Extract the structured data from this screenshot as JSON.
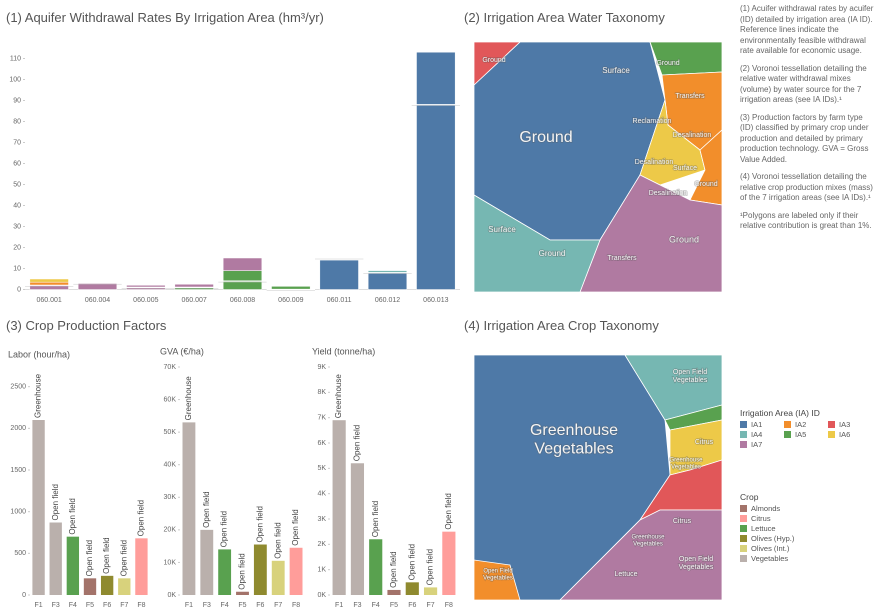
{
  "chart_data": [
    {
      "type": "stacked_bar",
      "title": "(1) Aquifer Withdrawal Rates By Irrigation Area (hm³/yr)",
      "categories": [
        "060.001",
        "060.004",
        "060.005",
        "060.007",
        "060.008",
        "060.009",
        "060.011",
        "060.012",
        "060.013"
      ],
      "series": [
        {
          "name": "IA1",
          "color": "#4e79a7",
          "values": [
            null,
            null,
            null,
            null,
            null,
            null,
            14,
            8,
            113
          ]
        },
        {
          "name": "IA4",
          "color": "#76b7b2",
          "values": [
            null,
            null,
            null,
            null,
            null,
            null,
            null,
            1,
            null
          ]
        },
        {
          "name": "IA5",
          "color": "#59a14f",
          "values": [
            null,
            null,
            null,
            1,
            9,
            1.5,
            null,
            null,
            null
          ]
        },
        {
          "name": "IA7",
          "color": "#b07aa1",
          "values": [
            2,
            3,
            2,
            1.5,
            6,
            null,
            null,
            null,
            null
          ]
        },
        {
          "name": "IA2",
          "color": "#f28e2b",
          "values": [
            1.5,
            null,
            null,
            null,
            null,
            null,
            null,
            null,
            null
          ]
        },
        {
          "name": "IA6",
          "color": "#edc948",
          "values": [
            1.5,
            null,
            null,
            null,
            null,
            null,
            null,
            null,
            null
          ]
        }
      ],
      "reference": [
        2,
        3,
        1,
        1,
        4,
        0,
        15,
        8,
        88
      ],
      "ylim": [
        -5,
        115
      ],
      "yticks": [
        0,
        10,
        20,
        30,
        40,
        50,
        60,
        70,
        80,
        90,
        100,
        110
      ],
      "grid": false
    },
    {
      "type": "bar",
      "title": "Labor (hour/ha)",
      "categories": [
        "F1",
        "F3",
        "F4",
        "F5",
        "F6",
        "F7",
        "F8"
      ],
      "values": [
        2100,
        870,
        700,
        200,
        230,
        200,
        680
      ],
      "bar_labels": [
        "Greenhouse",
        "Open field",
        "Open field",
        "Open field",
        "Open field",
        "Open field",
        "Open field"
      ],
      "colors": [
        "#bab0ac",
        "#bab0ac",
        "#59a14f",
        "#a3736a",
        "#8f8a2f",
        "#d8d27c",
        "#ff9d9a"
      ],
      "ylim": [
        0,
        2700
      ],
      "yticks": [
        0,
        500,
        1000,
        1500,
        2000,
        2500
      ],
      "grid": false
    },
    {
      "type": "bar",
      "title": "GVA (€/ha)",
      "categories": [
        "F1",
        "F3",
        "F4",
        "F5",
        "F6",
        "F7",
        "F8"
      ],
      "values": [
        53000,
        20000,
        14000,
        1000,
        15500,
        10500,
        14500
      ],
      "bar_labels": [
        "Greenhouse",
        "Open field",
        "Open field",
        "Open field",
        "Open field",
        "Open field",
        "Open field"
      ],
      "colors": [
        "#bab0ac",
        "#bab0ac",
        "#59a14f",
        "#a3736a",
        "#8f8a2f",
        "#d8d27c",
        "#ff9d9a"
      ],
      "ylim": [
        0,
        70000
      ],
      "yticks": [
        {
          "value": 0,
          "label": "0K"
        },
        {
          "value": 10000,
          "label": "10K"
        },
        {
          "value": 20000,
          "label": "20K"
        },
        {
          "value": 30000,
          "label": "30K"
        },
        {
          "value": 40000,
          "label": "40K"
        },
        {
          "value": 50000,
          "label": "50K"
        },
        {
          "value": 60000,
          "label": "60K"
        },
        {
          "value": 70000,
          "label": "70K"
        }
      ],
      "grid": false
    },
    {
      "type": "bar",
      "title": "Yield (tonne/ha)",
      "categories": [
        "F1",
        "F3",
        "F4",
        "F5",
        "F6",
        "F7",
        "F8"
      ],
      "values": [
        6900,
        5200,
        2200,
        200,
        500,
        300,
        2500
      ],
      "bar_labels": [
        "Greenhouse",
        "Open field",
        "Open field",
        "Open field",
        "Open field",
        "Open field",
        "Open field"
      ],
      "colors": [
        "#bab0ac",
        "#bab0ac",
        "#59a14f",
        "#a3736a",
        "#8f8a2f",
        "#d8d27c",
        "#ff9d9a"
      ],
      "ylim": [
        0,
        9000
      ],
      "yticks": [
        {
          "value": 0,
          "label": "0K"
        },
        {
          "value": 1000,
          "label": "1K"
        },
        {
          "value": 2000,
          "label": "2K"
        },
        {
          "value": 3000,
          "label": "3K"
        },
        {
          "value": 4000,
          "label": "4K"
        },
        {
          "value": 5000,
          "label": "5K"
        },
        {
          "value": 6000,
          "label": "6K"
        },
        {
          "value": 7000,
          "label": "7K"
        },
        {
          "value": 8000,
          "label": "8K"
        },
        {
          "value": 9000,
          "label": "9K"
        }
      ],
      "grid": false
    }
  ],
  "section3_title": "(3) Crop Production Factors",
  "taxonomy_water": {
    "title": "(2) Irrigation Area Water Taxonomy",
    "labels": [
      "Ground",
      "Ground",
      "Surface",
      "Ground",
      "Transfers",
      "Reclamation",
      "Desalination",
      "Desalination",
      "Surface",
      "Ground",
      "Desalination",
      "Surface",
      "Ground",
      "Transfers",
      "Ground"
    ]
  },
  "taxonomy_crop": {
    "title": "(4) Irrigation Area Crop Taxonomy",
    "labels": [
      "Greenhouse Vegetables",
      "Open Field Vegetables",
      "Citrus",
      "Greenhouse Vegetables",
      "Citrus",
      "Greenhouse Vegetables",
      "Open Field Vegetables",
      "Lettuce",
      "Open Field Vegetables"
    ]
  },
  "notes": [
    "(1) Acuifer withdrawal rates by acuifer (ID) detailed by irrigation area (IA ID). Reference lines indicate the environmentally feasible withdrawal rate available for economic usage.",
    "(2) Voronoi tessellation detailing the relative water withdrawal mixes (volume) by water source for the 7 irrigation areas (see IA IDs).¹",
    "(3) Production factors by farm type (ID) classified by primary crop under production and detailed by primary production technology. GVA = Gross Value Added.",
    "(4) Voronoi tessellation detailing the relative crop production mixes (mass) of the 7 irrigation areas (see IA IDs).¹",
    "¹Polygons are labeled only if their relative contribution is great than 1%."
  ],
  "legend_ia": {
    "title": "Irrigation Area (IA) ID",
    "items": [
      {
        "label": "IA1",
        "color": "#4e79a7"
      },
      {
        "label": "IA2",
        "color": "#f28e2b"
      },
      {
        "label": "IA3",
        "color": "#e15759"
      },
      {
        "label": "IA4",
        "color": "#76b7b2"
      },
      {
        "label": "IA5",
        "color": "#59a14f"
      },
      {
        "label": "IA6",
        "color": "#edc948"
      },
      {
        "label": "IA7",
        "color": "#b07aa1"
      }
    ]
  },
  "legend_crop": {
    "title": "Crop",
    "items": [
      {
        "label": "Almonds",
        "color": "#a3736a"
      },
      {
        "label": "Citrus",
        "color": "#ff9d9a"
      },
      {
        "label": "Lettuce",
        "color": "#59a14f"
      },
      {
        "label": "Olives (Hyp.)",
        "color": "#8f8a2f"
      },
      {
        "label": "Olives (Int.)",
        "color": "#d8d27c"
      },
      {
        "label": "Vegetables",
        "color": "#bab0ac"
      }
    ]
  }
}
